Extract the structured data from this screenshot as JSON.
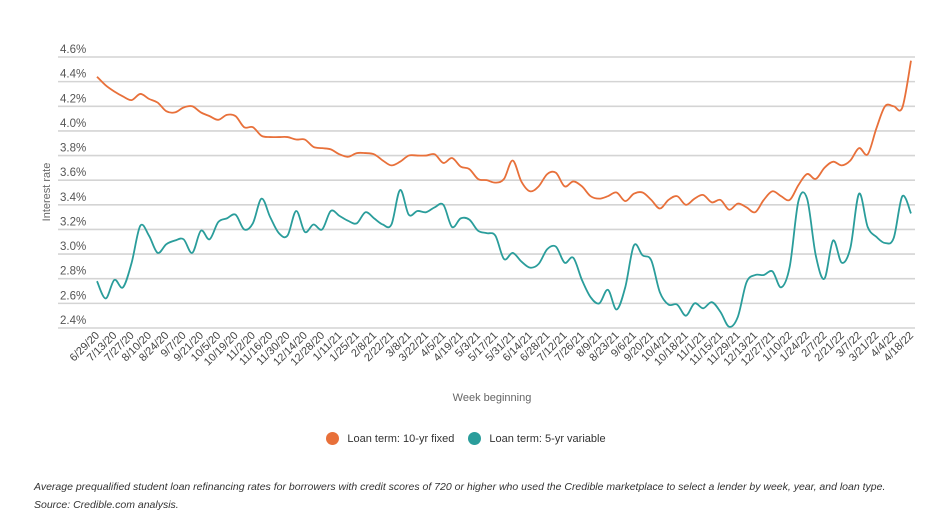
{
  "chart_data": {
    "type": "line",
    "title": "",
    "xlabel": "Week beginning",
    "ylabel": "Interest rate",
    "ylim": [
      2.4,
      4.6
    ],
    "yticks": [
      "4.6%",
      "4.4%",
      "4.2%",
      "4.0%",
      "3.8%",
      "3.6%",
      "3.4%",
      "3.2%",
      "3.0%",
      "2.8%",
      "2.6%",
      "2.4%"
    ],
    "ytick_values": [
      4.6,
      4.4,
      4.2,
      4.0,
      3.8,
      3.6,
      3.4,
      3.2,
      3.0,
      2.8,
      2.6,
      2.4
    ],
    "grid": "horizontal",
    "legend_placement": "bottom-center",
    "x": [
      "6/29/20",
      "7/6/20",
      "7/13/20",
      "7/20/20",
      "7/27/20",
      "8/3/20",
      "8/10/20",
      "8/17/20",
      "8/24/20",
      "8/31/20",
      "9/7/20",
      "9/14/20",
      "9/21/20",
      "9/28/20",
      "10/5/20",
      "10/12/20",
      "10/19/20",
      "10/26/20",
      "11/2/20",
      "11/9/20",
      "11/16/20",
      "11/23/20",
      "11/30/20",
      "12/7/20",
      "12/14/20",
      "12/21/20",
      "12/28/20",
      "1/4/21",
      "1/11/21",
      "1/18/21",
      "1/25/21",
      "2/1/21",
      "2/8/21",
      "2/15/21",
      "2/22/21",
      "3/1/21",
      "3/8/21",
      "3/15/21",
      "3/22/21",
      "3/29/21",
      "4/5/21",
      "4/12/21",
      "4/19/21",
      "4/26/21",
      "5/3/21",
      "5/10/21",
      "5/17/21",
      "5/24/21",
      "5/31/21",
      "6/7/21",
      "6/14/21",
      "6/21/21",
      "6/28/21",
      "7/5/21",
      "7/12/21",
      "7/19/21",
      "7/26/21",
      "8/2/21",
      "8/9/21",
      "8/16/21",
      "8/23/21",
      "8/30/21",
      "9/6/21",
      "9/13/21",
      "9/20/21",
      "9/27/21",
      "10/4/21",
      "10/11/21",
      "10/18/21",
      "10/25/21",
      "11/1/21",
      "11/8/21",
      "11/15/21",
      "11/22/21",
      "11/29/21",
      "12/6/21",
      "12/13/21",
      "12/20/21",
      "12/27/21",
      "1/3/22",
      "1/10/22",
      "1/17/22",
      "1/24/22",
      "1/31/22",
      "2/7/22",
      "2/14/22",
      "2/21/22",
      "2/28/22",
      "3/7/22",
      "3/14/22",
      "3/21/22",
      "3/28/22",
      "4/4/22",
      "4/11/22",
      "4/18/22"
    ],
    "xtick_labels": [
      "6/29/20",
      "7/13/20",
      "7/27/20",
      "8/10/20",
      "8/24/20",
      "9/7/20",
      "9/21/20",
      "10/5/20",
      "10/19/20",
      "11/2/20",
      "11/16/20",
      "11/30/20",
      "12/14/20",
      "12/28/20",
      "1/11/21",
      "1/25/21",
      "2/8/21",
      "2/22/21",
      "3/8/21",
      "3/22/21",
      "4/5/21",
      "4/19/21",
      "5/3/21",
      "5/17/21",
      "5/31/21",
      "6/14/21",
      "6/28/21",
      "7/12/21",
      "7/26/21",
      "8/9/21",
      "8/23/21",
      "9/6/21",
      "9/20/21",
      "10/4/21",
      "10/18/21",
      "11/1/21",
      "11/15/21",
      "11/29/21",
      "12/13/21",
      "12/27/21",
      "1/10/22",
      "1/24/22",
      "2/7/22",
      "2/21/22",
      "3/7/22",
      "3/21/22",
      "4/4/22",
      "4/18/22"
    ],
    "series": [
      {
        "name": "Loan term: 10-yr fixed",
        "color": "#e8703a",
        "values": [
          4.44,
          4.37,
          4.32,
          4.28,
          4.25,
          4.3,
          4.26,
          4.23,
          4.16,
          4.15,
          4.19,
          4.2,
          4.15,
          4.12,
          4.09,
          4.13,
          4.12,
          4.03,
          4.03,
          3.96,
          3.95,
          3.95,
          3.95,
          3.93,
          3.93,
          3.87,
          3.86,
          3.85,
          3.81,
          3.79,
          3.82,
          3.82,
          3.81,
          3.76,
          3.72,
          3.75,
          3.8,
          3.8,
          3.8,
          3.81,
          3.74,
          3.78,
          3.71,
          3.69,
          3.61,
          3.6,
          3.58,
          3.61,
          3.76,
          3.59,
          3.51,
          3.55,
          3.65,
          3.66,
          3.55,
          3.59,
          3.55,
          3.47,
          3.45,
          3.47,
          3.5,
          3.43,
          3.49,
          3.5,
          3.44,
          3.37,
          3.44,
          3.47,
          3.4,
          3.45,
          3.48,
          3.42,
          3.44,
          3.36,
          3.41,
          3.38,
          3.34,
          3.44,
          3.51,
          3.47,
          3.44,
          3.56,
          3.65,
          3.61,
          3.7,
          3.75,
          3.72,
          3.76,
          3.86,
          3.81,
          4.02,
          4.2,
          4.2,
          4.19,
          4.57
        ]
      },
      {
        "name": "Loan term: 5-yr variable",
        "color": "#2a9d9b",
        "values": [
          2.78,
          2.64,
          2.79,
          2.73,
          2.93,
          3.23,
          3.15,
          3.01,
          3.08,
          3.11,
          3.12,
          3.01,
          3.19,
          3.12,
          3.26,
          3.29,
          3.32,
          3.2,
          3.25,
          3.45,
          3.3,
          3.17,
          3.15,
          3.35,
          3.18,
          3.24,
          3.2,
          3.35,
          3.31,
          3.27,
          3.25,
          3.34,
          3.29,
          3.24,
          3.24,
          3.52,
          3.32,
          3.35,
          3.34,
          3.38,
          3.4,
          3.22,
          3.29,
          3.28,
          3.19,
          3.17,
          3.15,
          2.96,
          3.01,
          2.94,
          2.89,
          2.92,
          3.04,
          3.06,
          2.93,
          2.97,
          2.79,
          2.65,
          2.6,
          2.71,
          2.55,
          2.73,
          3.07,
          2.99,
          2.95,
          2.69,
          2.59,
          2.59,
          2.5,
          2.6,
          2.56,
          2.61,
          2.53,
          2.41,
          2.49,
          2.77,
          2.83,
          2.83,
          2.86,
          2.73,
          2.9,
          3.43,
          3.45,
          2.99,
          2.8,
          3.11,
          2.93,
          3.05,
          3.49,
          3.22,
          3.14,
          3.09,
          3.13,
          3.47,
          3.33
        ]
      }
    ]
  },
  "caption": "Average prequalified student loan refinancing rates for borrowers with credit scores of 720 or higher who used the Credible marketplace to select a lender by week, year, and loan type. Source: Credible.com analysis."
}
